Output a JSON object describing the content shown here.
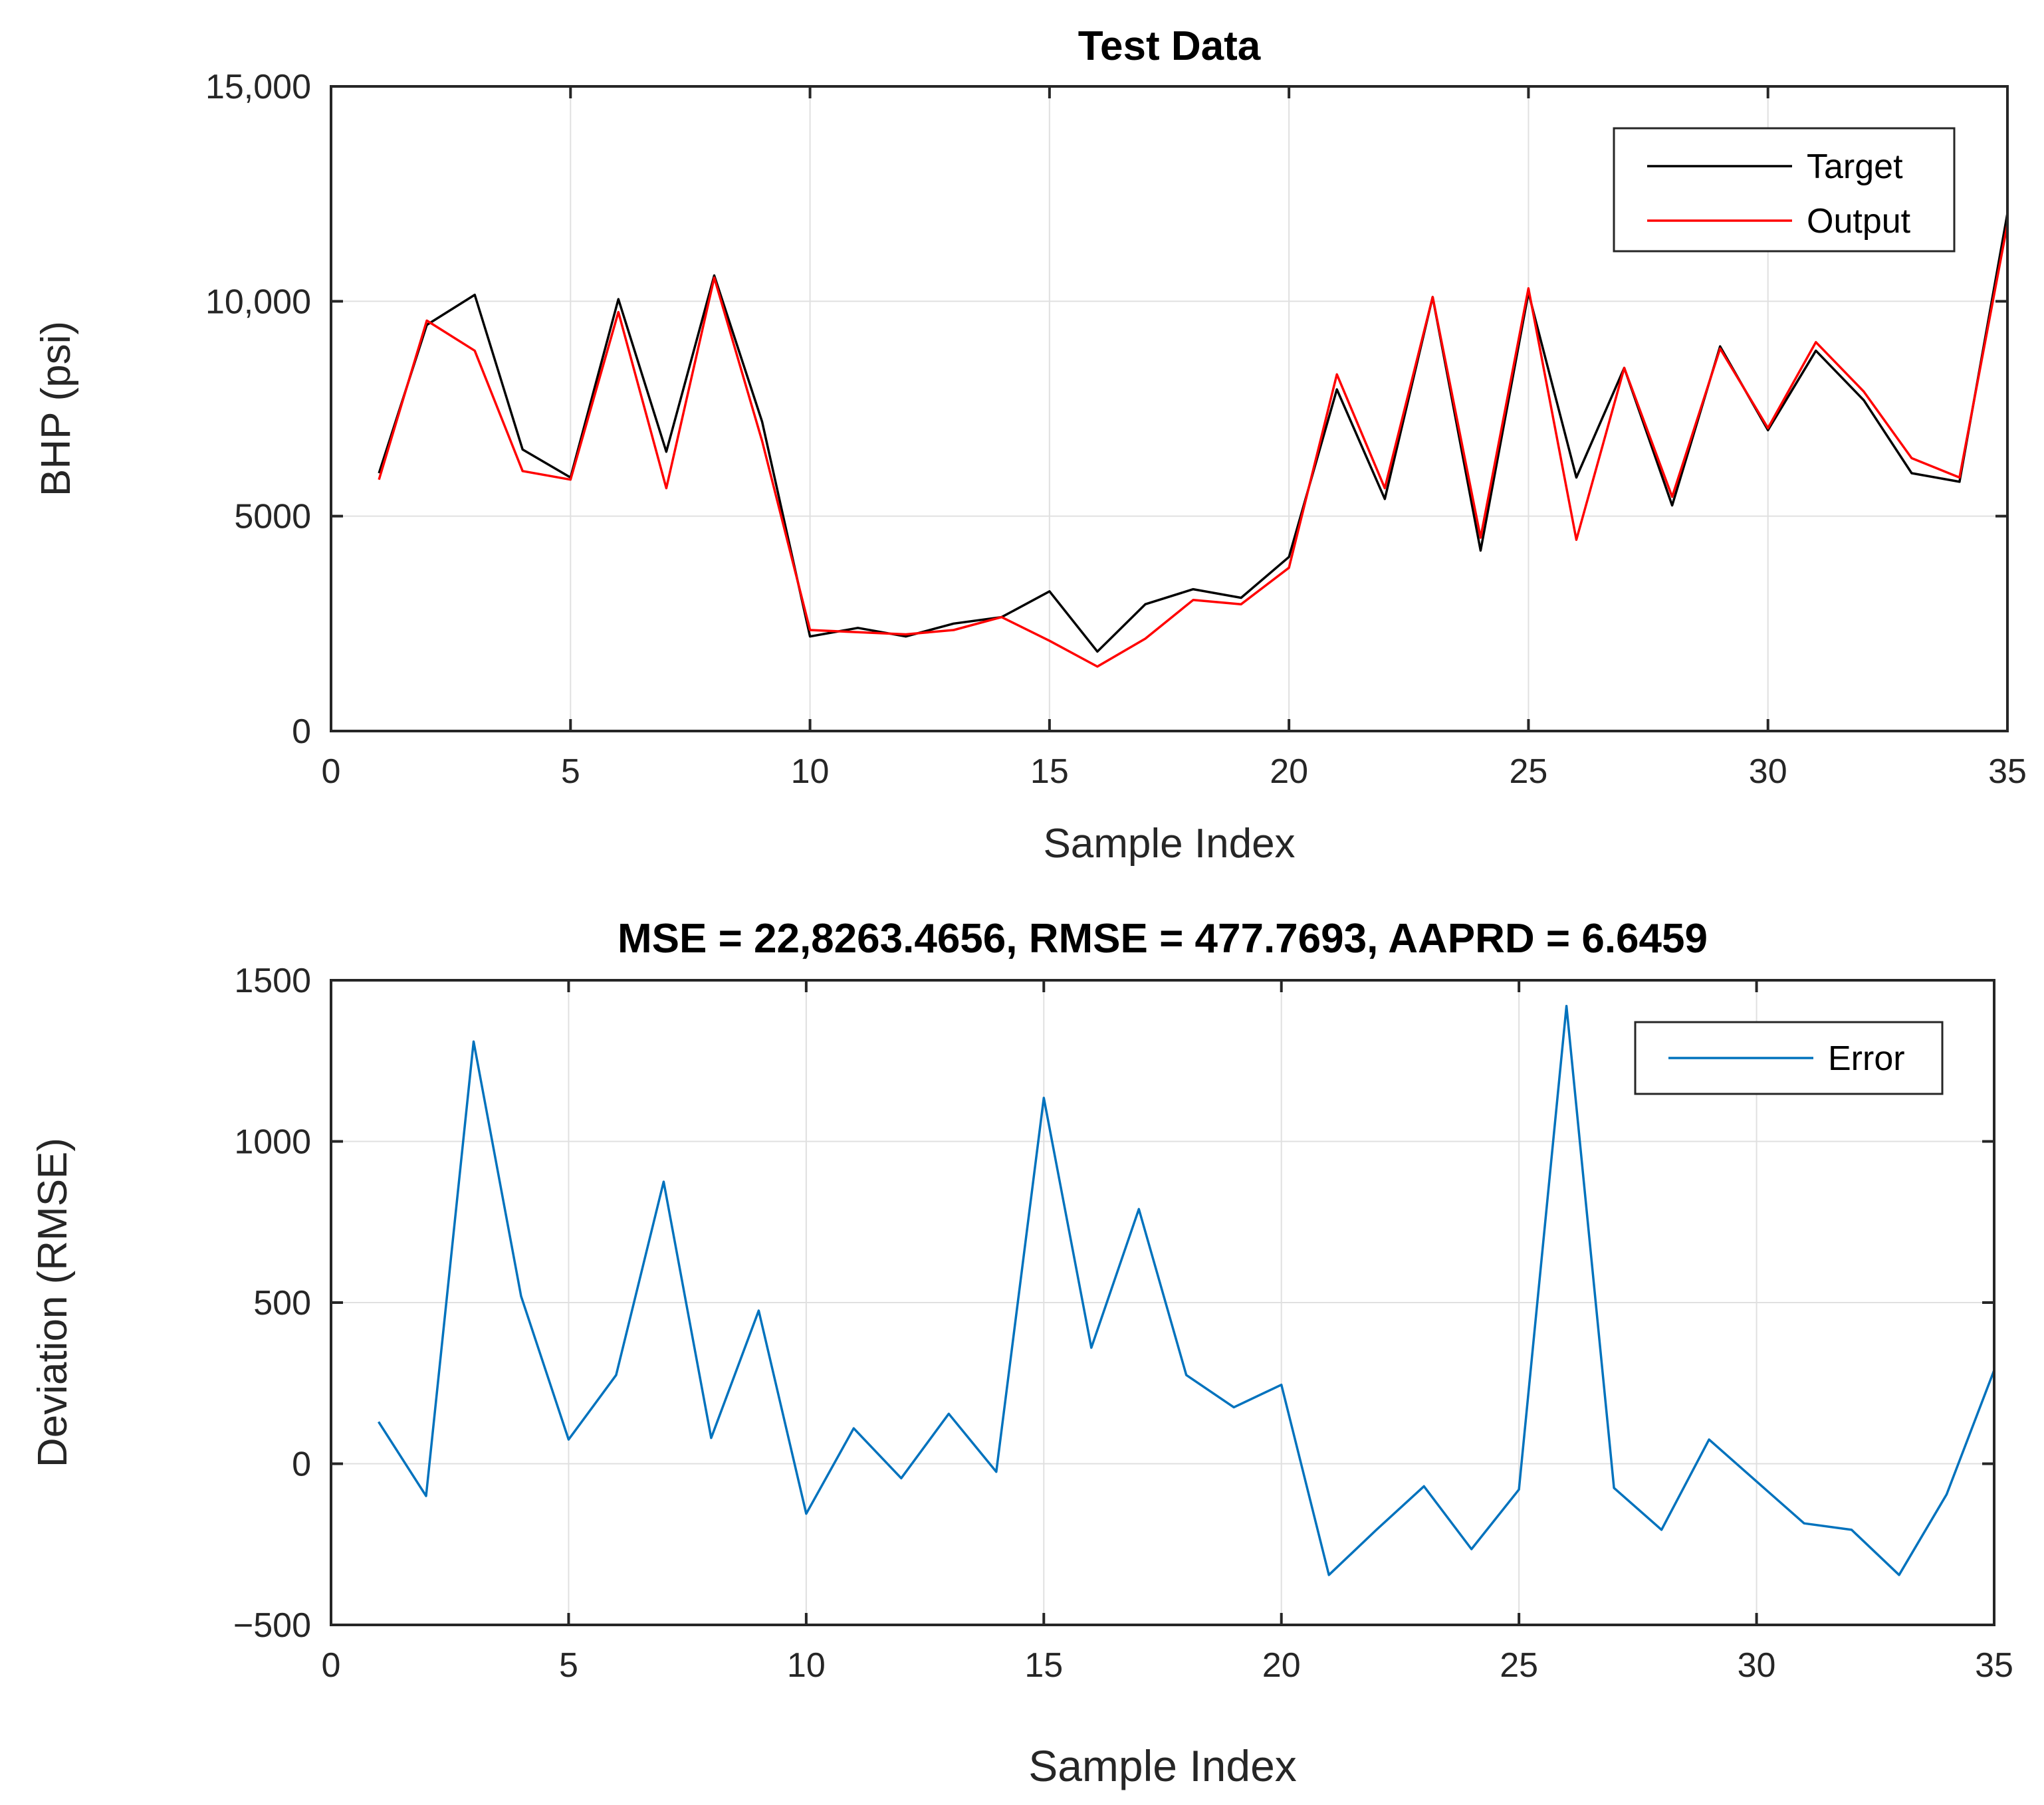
{
  "chart_data": [
    {
      "type": "line",
      "title": "Test Data",
      "xlabel": "Sample Index",
      "ylabel": "BHP (psi)",
      "xlim": [
        0,
        35
      ],
      "ylim": [
        0,
        15000
      ],
      "xticks": [
        0,
        5,
        10,
        15,
        20,
        25,
        30,
        35
      ],
      "yticks": [
        0,
        5000,
        10000,
        15000
      ],
      "yticklabels": [
        "0",
        "5000",
        "10,000",
        "15,000"
      ],
      "grid": true,
      "legend_position": "top-right",
      "x": [
        1,
        2,
        3,
        4,
        5,
        6,
        7,
        8,
        9,
        10,
        11,
        12,
        13,
        14,
        15,
        16,
        17,
        18,
        19,
        20,
        21,
        22,
        23,
        24,
        25,
        26,
        27,
        28,
        29,
        30,
        31,
        32,
        33,
        34,
        35
      ],
      "series": [
        {
          "name": "Target",
          "color": "#000000",
          "values": [
            6000,
            9450,
            10150,
            6550,
            5900,
            10050,
            6500,
            10600,
            7200,
            2200,
            2400,
            2200,
            2500,
            2650,
            3250,
            1850,
            2950,
            3300,
            3100,
            4050,
            7950,
            5400,
            10100,
            4200,
            10200,
            5900,
            8450,
            5250,
            8950,
            7000,
            8850,
            7700,
            6000,
            5800,
            12050
          ]
        },
        {
          "name": "Output",
          "color": "#ff0000",
          "values": [
            5850,
            9550,
            8850,
            6050,
            5850,
            9750,
            5650,
            10550,
            6750,
            2350,
            2300,
            2250,
            2350,
            2650,
            2100,
            1500,
            2150,
            3050,
            2950,
            3800,
            8300,
            5650,
            10100,
            4500,
            10300,
            4450,
            8450,
            5450,
            8900,
            7050,
            9050,
            7900,
            6350,
            5900,
            11800
          ]
        }
      ]
    },
    {
      "type": "line",
      "title": "MSE = 22,8263.4656, RMSE = 477.7693, AAPRD = 6.6459",
      "xlabel": "Sample Index",
      "ylabel": "Deviation (RMSE)",
      "xlim": [
        0,
        35
      ],
      "ylim": [
        -500,
        1500
      ],
      "xticks": [
        0,
        5,
        10,
        15,
        20,
        25,
        30,
        35
      ],
      "yticks": [
        -500,
        0,
        500,
        1000,
        1500
      ],
      "yticklabels": [
        "−500",
        "0",
        "500",
        "1000",
        "1500"
      ],
      "grid": true,
      "legend_position": "top-right",
      "x": [
        1,
        2,
        3,
        4,
        5,
        6,
        7,
        8,
        9,
        10,
        11,
        12,
        13,
        14,
        15,
        16,
        17,
        18,
        19,
        20,
        21,
        22,
        23,
        24,
        25,
        26,
        27,
        28,
        29,
        30,
        31,
        32,
        33,
        34,
        35
      ],
      "series": [
        {
          "name": "Error",
          "color": "#0072bd",
          "values": [
            130,
            -100,
            1310,
            520,
            75,
            275,
            875,
            80,
            475,
            -155,
            110,
            -45,
            155,
            -25,
            1135,
            360,
            790,
            275,
            175,
            245,
            -345,
            -205,
            -70,
            -265,
            -80,
            1420,
            -75,
            -205,
            75,
            -55,
            -185,
            -205,
            -345,
            -95,
            290
          ]
        }
      ]
    }
  ]
}
